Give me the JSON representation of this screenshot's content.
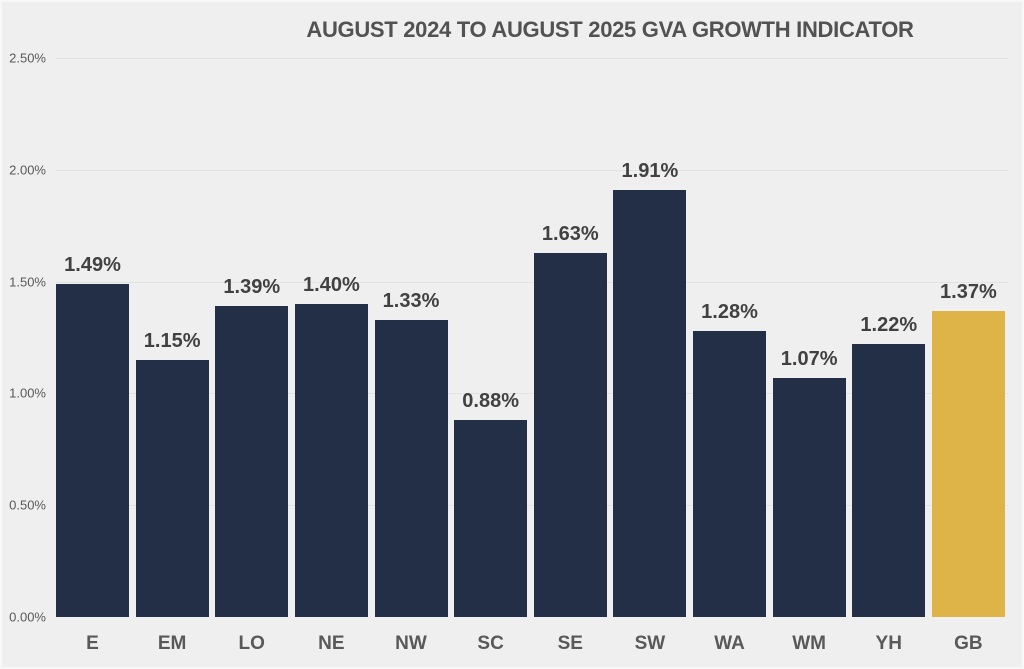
{
  "title": "AUGUST 2024 TO AUGUST 2025 GVA GROWTH INDICATOR",
  "chart_data": {
    "type": "bar",
    "title": "AUGUST 2024 TO AUGUST 2025 GVA GROWTH INDICATOR",
    "categories": [
      "E",
      "EM",
      "LO",
      "NE",
      "NW",
      "SC",
      "SE",
      "SW",
      "WA",
      "WM",
      "YH",
      "GB"
    ],
    "values": [
      1.49,
      1.15,
      1.39,
      1.4,
      1.33,
      0.88,
      1.63,
      1.91,
      1.28,
      1.07,
      1.22,
      1.37
    ],
    "data_labels": [
      "1.49%",
      "1.15%",
      "1.39%",
      "1.40%",
      "1.33%",
      "0.88%",
      "1.63%",
      "1.91%",
      "1.28%",
      "1.07%",
      "1.22%",
      "1.37%"
    ],
    "xlabel": "",
    "ylabel": "",
    "ylim": [
      0,
      2.5
    ],
    "ytick_labels": [
      "0.00%",
      "0.50%",
      "1.00%",
      "1.50%",
      "2.00%",
      "2.50%"
    ],
    "ytick_values": [
      0,
      0.5,
      1.0,
      1.5,
      2.0,
      2.5
    ],
    "grid": "horizontal-gridlines-at-ticks",
    "legend": "none",
    "colors": {
      "bar": "#222F47",
      "highlight": "#DEB347",
      "background": "#EFEFF0",
      "gridline": "#E3E3E4",
      "text": "#595959",
      "data_label": "#414141",
      "title_text": "#525252"
    },
    "highlight_category": "GB"
  }
}
